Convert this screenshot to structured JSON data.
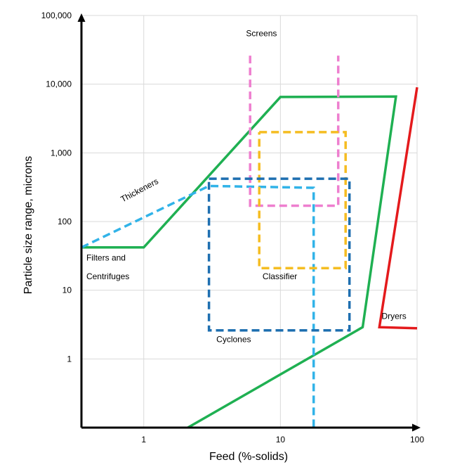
{
  "chart_data": {
    "type": "line",
    "xscale": "log",
    "yscale": "log",
    "xlim": [
      0.35,
      100
    ],
    "ylim": [
      0.1,
      100000
    ],
    "xlabel": "Feed (%-solids)",
    "ylabel": "Particle size range, microns",
    "x_ticks": [
      {
        "value": 1,
        "label": "1"
      },
      {
        "value": 10,
        "label": "10"
      },
      {
        "value": 100,
        "label": "100"
      }
    ],
    "y_ticks": [
      {
        "value": 1,
        "label": "1"
      },
      {
        "value": 10,
        "label": "10"
      },
      {
        "value": 100,
        "label": "100"
      },
      {
        "value": 1000,
        "label": "1,000"
      },
      {
        "value": 10000,
        "label": "10,000"
      },
      {
        "value": 100000,
        "label": "100,000"
      }
    ],
    "grid": true,
    "series": [
      {
        "name": "Filters and Centrifuges",
        "color": "#1fb052",
        "style": "solid",
        "points": [
          [
            0.35,
            42
          ],
          [
            1,
            42
          ],
          [
            10,
            6500
          ],
          [
            70,
            6600
          ],
          [
            40,
            2.9
          ],
          [
            2.1,
            0.1
          ]
        ]
      },
      {
        "name": "Thickeners",
        "color": "#31b3e8",
        "style": "dashed",
        "points": [
          [
            0.35,
            42
          ],
          [
            3,
            330
          ],
          [
            17.5,
            310
          ],
          [
            17.5,
            0.1
          ]
        ]
      },
      {
        "name": "Screens",
        "color": "#ee7fcf",
        "style": "dashed",
        "points": [
          [
            6,
            26000
          ],
          [
            6,
            170
          ],
          [
            26.5,
            170
          ],
          [
            26.5,
            26000
          ]
        ]
      },
      {
        "name": "Classifier",
        "color": "#f5bd22",
        "style": "dashed",
        "points": [
          [
            7,
            2000
          ],
          [
            30,
            2000
          ],
          [
            30,
            21
          ],
          [
            7,
            21
          ],
          [
            7,
            2000
          ]
        ]
      },
      {
        "name": "Cyclones",
        "color": "#1e6fb0",
        "style": "dashed",
        "points": [
          [
            3,
            420
          ],
          [
            32,
            420
          ],
          [
            32,
            2.6
          ],
          [
            3,
            2.6
          ],
          [
            3,
            420
          ]
        ]
      },
      {
        "name": "Dryers",
        "color": "#e41a1c",
        "style": "solid",
        "points": [
          [
            100,
            9000
          ],
          [
            53,
            2.9
          ],
          [
            100,
            2.8
          ]
        ]
      }
    ],
    "annotations": [
      {
        "text": "Screens",
        "x": 5.6,
        "y": 50000
      },
      {
        "text": "Thickeners",
        "x": 0.7,
        "y": 190,
        "rotate": -28
      },
      {
        "text": "Filters and",
        "x": 0.38,
        "y": 27
      },
      {
        "text": "Centrifuges",
        "x": 0.38,
        "y": 14.5
      },
      {
        "text": "Classifier",
        "x": 7.4,
        "y": 14.5
      },
      {
        "text": "Cyclones",
        "x": 3.4,
        "y": 1.75
      },
      {
        "text": "Dryers",
        "x": 55,
        "y": 3.8
      }
    ]
  }
}
